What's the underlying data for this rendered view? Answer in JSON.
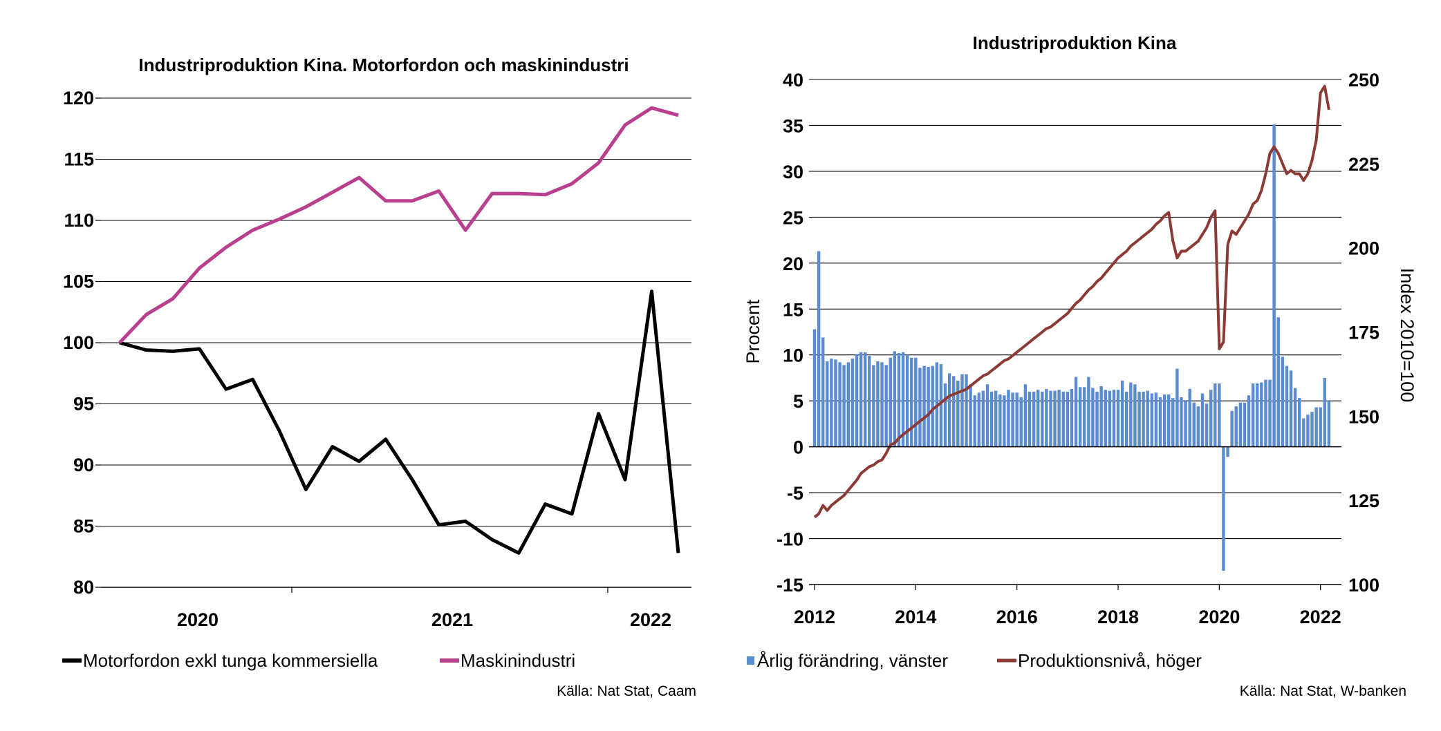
{
  "chart_data": [
    {
      "type": "line",
      "title": "Industriproduktion Kina. Motorfordon och maskinindustri",
      "ylim": [
        80,
        120
      ],
      "yticks": [
        "80",
        "85",
        "90",
        "95",
        "100",
        "105",
        "110",
        "115",
        "120"
      ],
      "x_labels": [
        "2020",
        "2021",
        "2022"
      ],
      "grid": true,
      "legend_position": "bottom",
      "series": [
        {
          "name": "Motorfordon exkl tunga kommersiella",
          "color": "#000000",
          "values": [
            100,
            99.4,
            99.3,
            99.5,
            96.2,
            97.0,
            92.8,
            88.0,
            91.5,
            90.3,
            92.1,
            88.8,
            85.1,
            85.4,
            83.9,
            82.8,
            86.8,
            86.0,
            94.2,
            88.8,
            104.2,
            82.8
          ]
        },
        {
          "name": "Maskinindustri",
          "color": "#b8408e",
          "values": [
            100,
            102.3,
            103.6,
            106.1,
            107.8,
            109.2,
            110.1,
            111.1,
            112.3,
            113.5,
            111.6,
            111.6,
            112.4,
            109.2,
            112.2,
            112.2,
            112.1,
            113.0,
            114.7,
            117.8,
            119.2,
            118.6
          ]
        }
      ],
      "source": "Källa: Nat Stat, Caam"
    },
    {
      "type": "bar+line",
      "title": "Industriproduktion Kina",
      "ylabel_left": "Procent",
      "ylabel_right": "Index 2010=100",
      "ylim_left": [
        -15,
        40
      ],
      "ylim_right": [
        100,
        250
      ],
      "yticks_left": [
        "-15",
        "-10",
        "-5",
        "0",
        "5",
        "10",
        "15",
        "20",
        "25",
        "30",
        "35",
        "40"
      ],
      "yticks_right": [
        "100",
        "125",
        "150",
        "175",
        "200",
        "225",
        "250"
      ],
      "x_labels": [
        "2012",
        "2014",
        "2016",
        "2018",
        "2020",
        "2022"
      ],
      "x_start": 2012.0,
      "x_end": 2022.25,
      "grid": true,
      "legend_position": "bottom",
      "bar_series": {
        "name": "Årlig förändring, vänster",
        "color": "#5b8bd1",
        "x": [
          2012.0,
          2012.083,
          2012.167,
          2012.25,
          2012.333,
          2012.417,
          2012.5,
          2012.583,
          2012.667,
          2012.75,
          2012.833,
          2012.917,
          2013.0,
          2013.083,
          2013.167,
          2013.25,
          2013.333,
          2013.417,
          2013.5,
          2013.583,
          2013.667,
          2013.75,
          2013.833,
          2013.917,
          2014.0,
          2014.083,
          2014.167,
          2014.25,
          2014.333,
          2014.417,
          2014.5,
          2014.583,
          2014.667,
          2014.75,
          2014.833,
          2014.917,
          2015.0,
          2015.083,
          2015.167,
          2015.25,
          2015.333,
          2015.417,
          2015.5,
          2015.583,
          2015.667,
          2015.75,
          2015.833,
          2015.917,
          2016.0,
          2016.083,
          2016.167,
          2016.25,
          2016.333,
          2016.417,
          2016.5,
          2016.583,
          2016.667,
          2016.75,
          2016.833,
          2016.917,
          2017.0,
          2017.083,
          2017.167,
          2017.25,
          2017.333,
          2017.417,
          2017.5,
          2017.583,
          2017.667,
          2017.75,
          2017.833,
          2017.917,
          2018.0,
          2018.083,
          2018.167,
          2018.25,
          2018.333,
          2018.417,
          2018.5,
          2018.583,
          2018.667,
          2018.75,
          2018.833,
          2018.917,
          2019.0,
          2019.083,
          2019.167,
          2019.25,
          2019.333,
          2019.417,
          2019.5,
          2019.583,
          2019.667,
          2019.75,
          2019.833,
          2019.917,
          2020.0,
          2020.083,
          2020.167,
          2020.25,
          2020.333,
          2020.417,
          2020.5,
          2020.583,
          2020.667,
          2020.75,
          2020.833,
          2020.917,
          2021.0,
          2021.083,
          2021.167,
          2021.25,
          2021.333,
          2021.417,
          2021.5,
          2021.583,
          2021.667,
          2021.75,
          2021.833,
          2021.917,
          2022.0,
          2022.083,
          2022.167
        ],
        "values": [
          12.8,
          21.3,
          11.9,
          9.3,
          9.6,
          9.5,
          9.2,
          8.9,
          9.2,
          9.6,
          10.1,
          10.3,
          10.3,
          9.9,
          8.9,
          9.3,
          9.2,
          8.9,
          9.7,
          10.4,
          10.2,
          10.3,
          10.0,
          9.7,
          9.7,
          8.6,
          8.8,
          8.7,
          8.8,
          9.2,
          9.0,
          6.9,
          8.0,
          7.7,
          7.2,
          7.9,
          7.9,
          6.8,
          5.6,
          5.9,
          6.1,
          6.8,
          6.0,
          6.1,
          5.7,
          5.6,
          6.2,
          5.9,
          5.9,
          5.4,
          6.8,
          6.0,
          6.0,
          6.2,
          6.0,
          6.3,
          6.1,
          6.1,
          6.2,
          6.0,
          6.0,
          6.3,
          7.6,
          6.5,
          6.5,
          7.6,
          6.4,
          6.0,
          6.6,
          6.2,
          6.1,
          6.2,
          6.2,
          7.2,
          6.0,
          7.0,
          6.8,
          6.0,
          6.0,
          6.1,
          5.8,
          5.9,
          5.4,
          5.7,
          5.7,
          5.3,
          8.5,
          5.4,
          5.0,
          6.3,
          4.8,
          4.4,
          5.8,
          4.7,
          6.2,
          6.9,
          6.9,
          -13.5,
          -1.1,
          3.9,
          4.4,
          4.8,
          4.8,
          5.6,
          6.9,
          6.9,
          7.0,
          7.3,
          7.3,
          35.1,
          14.1,
          9.8,
          8.8,
          8.3,
          6.4,
          5.3,
          3.1,
          3.5,
          3.8,
          4.3,
          4.3,
          7.5,
          5.0
        ]
      },
      "line_series": {
        "name": "Produktionsnivå, höger",
        "color": "#8b3a36",
        "x": [
          2012.0,
          2012.083,
          2012.167,
          2012.25,
          2012.333,
          2012.417,
          2012.5,
          2012.583,
          2012.667,
          2012.75,
          2012.833,
          2012.917,
          2013.0,
          2013.083,
          2013.167,
          2013.25,
          2013.333,
          2013.417,
          2013.5,
          2013.583,
          2013.667,
          2013.75,
          2013.833,
          2013.917,
          2014.0,
          2014.083,
          2014.167,
          2014.25,
          2014.333,
          2014.417,
          2014.5,
          2014.583,
          2014.667,
          2014.75,
          2014.833,
          2014.917,
          2015.0,
          2015.083,
          2015.167,
          2015.25,
          2015.333,
          2015.417,
          2015.5,
          2015.583,
          2015.667,
          2015.75,
          2015.833,
          2015.917,
          2016.0,
          2016.083,
          2016.167,
          2016.25,
          2016.333,
          2016.417,
          2016.5,
          2016.583,
          2016.667,
          2016.75,
          2016.833,
          2016.917,
          2017.0,
          2017.083,
          2017.167,
          2017.25,
          2017.333,
          2017.417,
          2017.5,
          2017.583,
          2017.667,
          2017.75,
          2017.833,
          2017.917,
          2018.0,
          2018.083,
          2018.167,
          2018.25,
          2018.333,
          2018.417,
          2018.5,
          2018.583,
          2018.667,
          2018.75,
          2018.833,
          2018.917,
          2019.0,
          2019.083,
          2019.167,
          2019.25,
          2019.333,
          2019.417,
          2019.5,
          2019.583,
          2019.667,
          2019.75,
          2019.833,
          2019.917,
          2020.0,
          2020.083,
          2020.167,
          2020.25,
          2020.333,
          2020.417,
          2020.5,
          2020.583,
          2020.667,
          2020.75,
          2020.833,
          2020.917,
          2021.0,
          2021.083,
          2021.167,
          2021.25,
          2021.333,
          2021.417,
          2021.5,
          2021.583,
          2021.667,
          2021.75,
          2021.833,
          2021.917,
          2022.0,
          2022.083,
          2022.167
        ],
        "values": [
          120,
          121,
          123.5,
          122,
          123.5,
          124.5,
          125.5,
          126.5,
          128,
          129.5,
          131,
          133,
          134,
          135,
          135.5,
          136.5,
          137,
          139,
          141.5,
          142,
          143.5,
          144.5,
          145.5,
          146.5,
          147.5,
          148.5,
          149.5,
          150.5,
          152,
          153,
          154,
          155,
          156,
          156.5,
          157,
          157.5,
          158,
          159,
          160,
          161,
          162,
          162.5,
          163.5,
          164.5,
          165.5,
          166.5,
          167,
          168,
          169,
          170,
          171,
          172,
          173,
          174,
          175,
          176,
          176.5,
          177.5,
          178.5,
          179.5,
          180.5,
          182,
          183.5,
          184.5,
          186,
          187.5,
          188.5,
          190,
          191,
          192.5,
          194,
          195.5,
          197,
          198,
          199,
          200.5,
          201.5,
          202.5,
          203.5,
          204.5,
          205.5,
          207,
          208,
          209.5,
          210.5,
          202,
          197,
          199,
          199,
          200,
          201,
          202,
          204,
          206,
          209,
          211,
          170,
          172,
          201,
          205,
          204,
          206,
          208,
          210,
          213,
          214,
          217,
          222,
          228,
          230,
          228,
          225,
          222,
          223,
          222,
          222,
          220,
          222,
          226,
          232,
          246,
          248,
          241
        ]
      },
      "source": "Källa: Nat Stat, W-banken"
    }
  ]
}
